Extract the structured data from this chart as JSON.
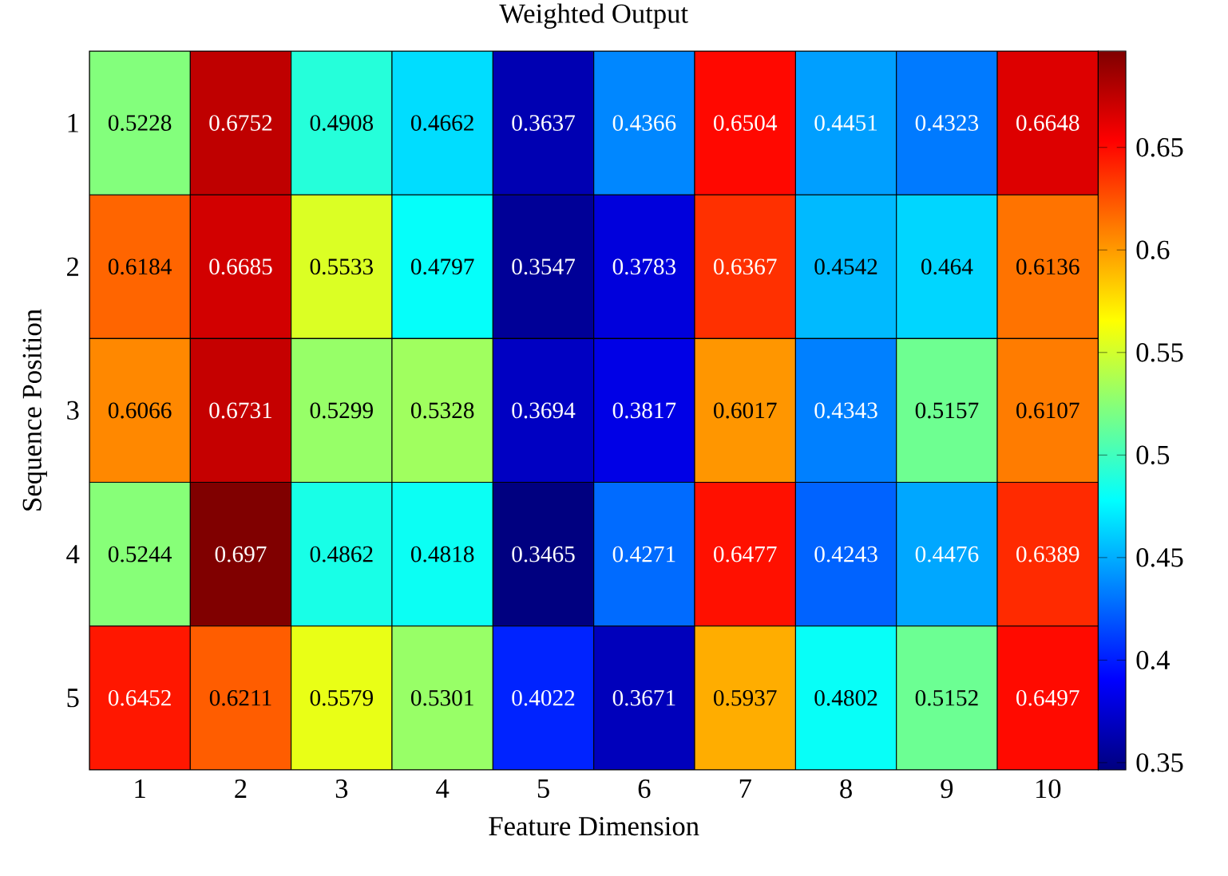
{
  "chart_data": {
    "type": "heatmap",
    "title": "Weighted Output",
    "xlabel": "Feature Dimension",
    "ylabel": "Sequence Position",
    "categories": [
      "1",
      "2",
      "3",
      "4",
      "5",
      "6",
      "7",
      "8",
      "9",
      "10"
    ],
    "y_categories": [
      "1",
      "2",
      "3",
      "4",
      "5"
    ],
    "cells": [
      [
        0.5228,
        0.6752,
        0.4908,
        0.4662,
        0.3637,
        0.4366,
        0.6504,
        0.4451,
        0.4323,
        0.6648
      ],
      [
        0.6184,
        0.6685,
        0.5533,
        0.4797,
        0.3547,
        0.3783,
        0.6367,
        0.4542,
        0.464,
        0.6136
      ],
      [
        0.6066,
        0.6731,
        0.5299,
        0.5328,
        0.3694,
        0.3817,
        0.6017,
        0.4343,
        0.5157,
        0.6107
      ],
      [
        0.5244,
        0.697,
        0.4862,
        0.4818,
        0.3465,
        0.4271,
        0.6477,
        0.4243,
        0.4476,
        0.6389
      ],
      [
        0.6452,
        0.6211,
        0.5579,
        0.5301,
        0.4022,
        0.3671,
        0.5937,
        0.4802,
        0.5152,
        0.6497
      ]
    ],
    "clim": [
      0.3465,
      0.697
    ],
    "cticks": [
      0.35,
      0.4,
      0.45,
      0.5,
      0.55,
      0.6,
      0.65
    ],
    "data_labels": true
  }
}
